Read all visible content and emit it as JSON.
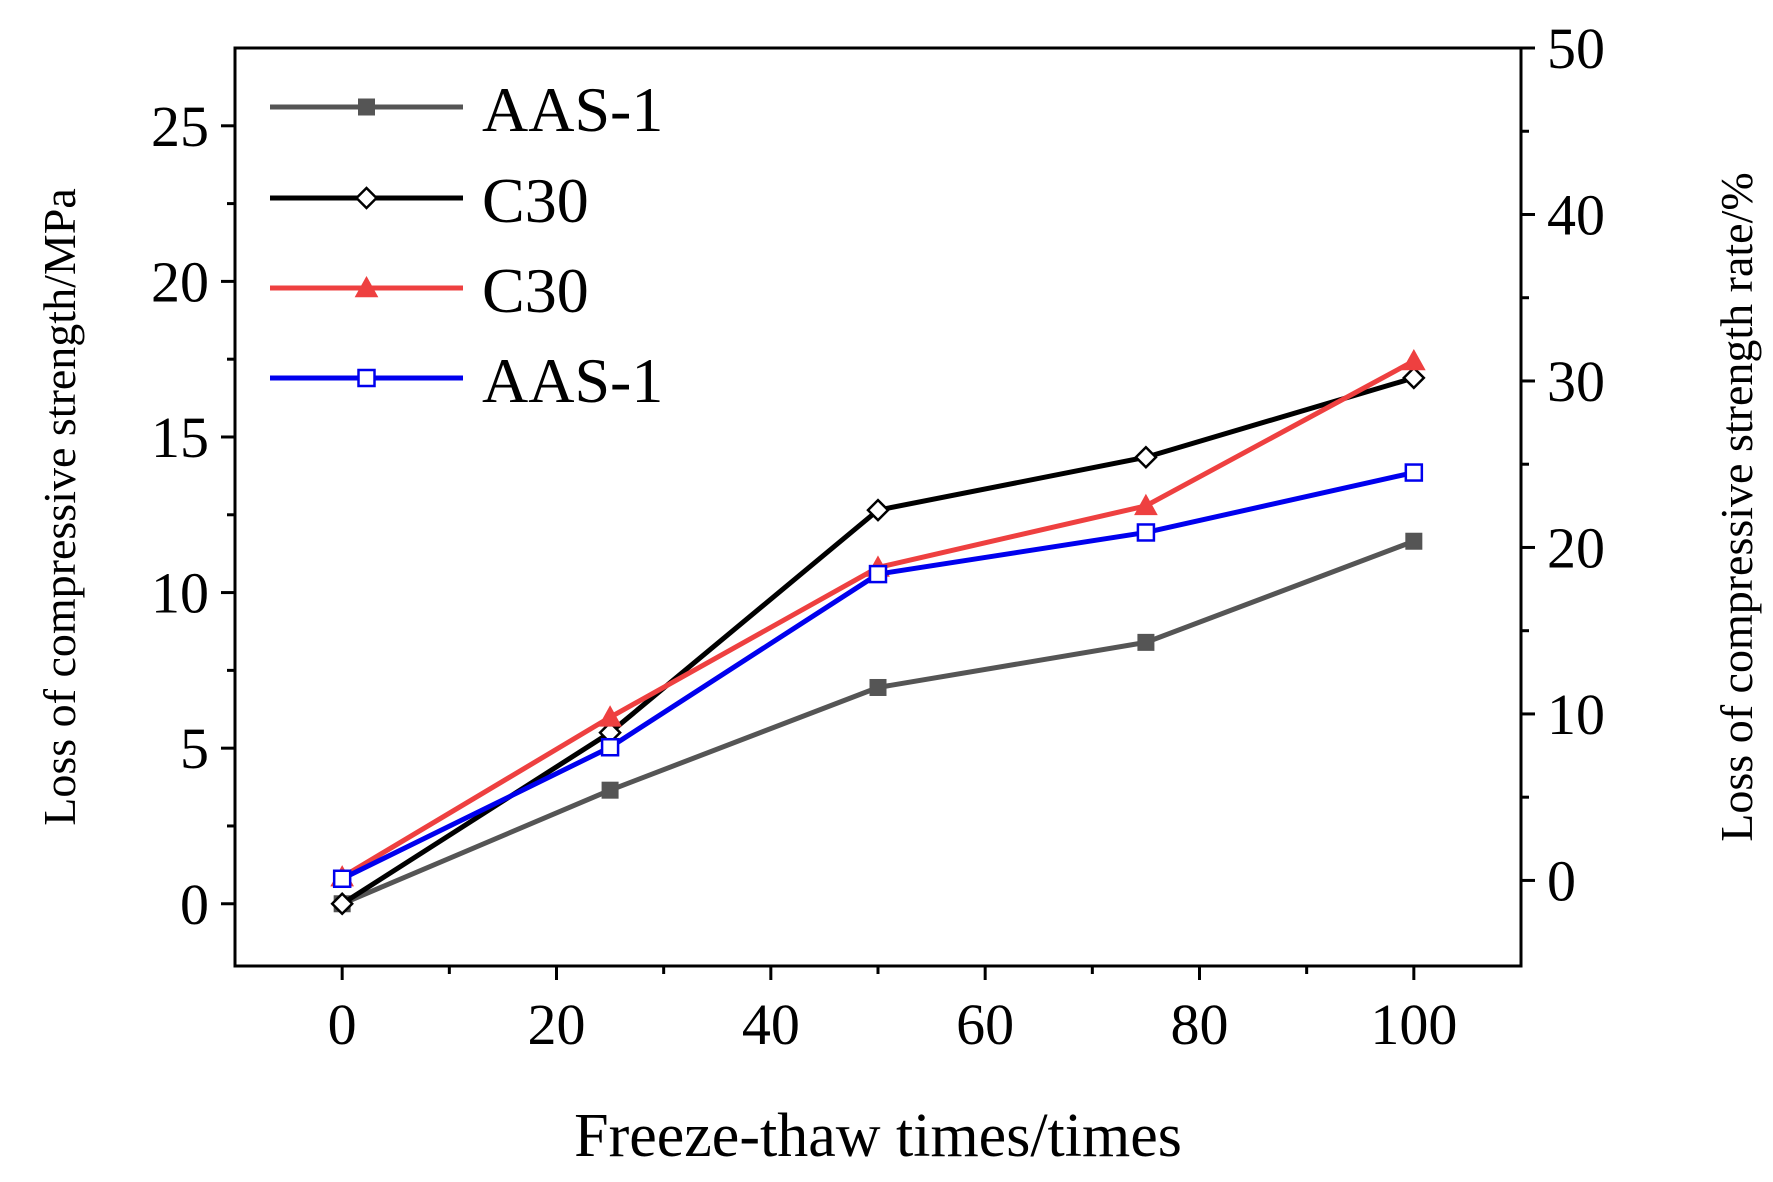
{
  "chart_data": {
    "type": "line",
    "title": "",
    "xlabel": "Freeze-thaw times/times",
    "ylabel_left": "Loss of compressive strength/MPa",
    "ylabel_right": "Loss of compressive strength rate/%",
    "x": [
      0,
      25,
      50,
      75,
      100
    ],
    "xlim": [
      -10,
      110
    ],
    "ylim_left": [
      -2,
      27.5
    ],
    "ylim_right": [
      -5.14,
      50
    ],
    "xticks": [
      "0",
      "20",
      "40",
      "60",
      "80",
      "100"
    ],
    "yticks_left": [
      "0",
      "5",
      "10",
      "15",
      "20",
      "25"
    ],
    "yticks_right": [
      "0",
      "10",
      "20",
      "30",
      "40",
      "50"
    ],
    "legend_position": "top-left",
    "grid": false,
    "series": [
      {
        "name": "AAS-1",
        "axis": "left",
        "color": "#555555",
        "marker": "filled-square",
        "values": [
          0,
          3.65,
          6.95,
          8.4,
          11.65
        ]
      },
      {
        "name": "C30",
        "axis": "left",
        "color": "#000000",
        "marker": "open-diamond",
        "values": [
          0,
          5.5,
          12.65,
          14.35,
          16.9
        ]
      },
      {
        "name": "C30",
        "axis": "right",
        "color": "#ee4040",
        "marker": "filled-triangle",
        "values": [
          0.2,
          9.8,
          18.8,
          22.5,
          31.2
        ]
      },
      {
        "name": "AAS-1",
        "axis": "right",
        "color": "#0000ee",
        "marker": "open-square",
        "values": [
          0.1,
          8.0,
          18.4,
          20.9,
          24.5
        ]
      }
    ]
  }
}
